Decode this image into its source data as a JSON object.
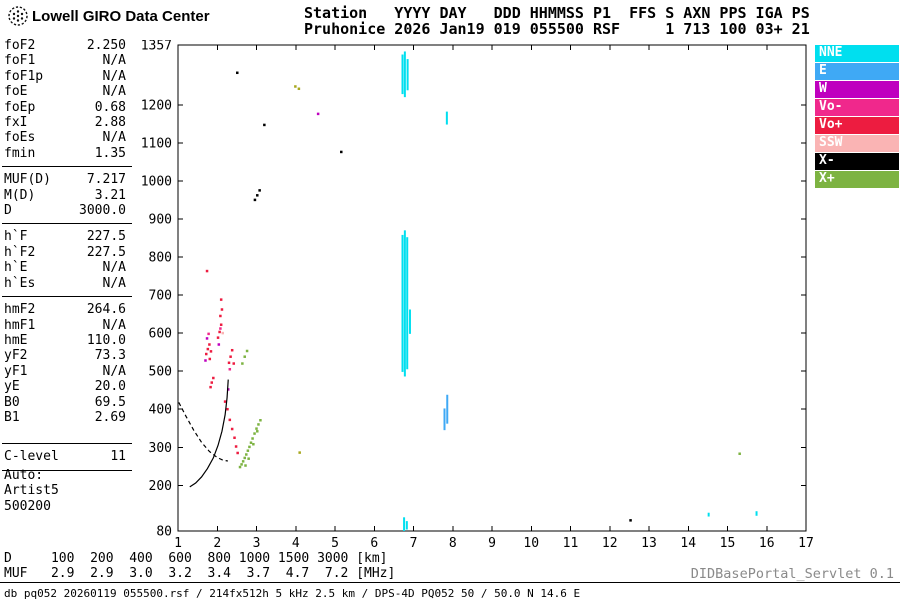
{
  "brand": {
    "title": "Lowell GIRO Data Center"
  },
  "station_header": {
    "line1": "Station   YYYY DAY   DDD HHMMSS P1  FFS S AXN PPS IGA PS",
    "line2": "Pruhonice 2026 Jan19 019 055500 RSF     1 713 100 03+ 21"
  },
  "params": {
    "groups": [
      {
        "rows": [
          [
            "foF2",
            "2.250"
          ],
          [
            "foF1",
            "N/A"
          ],
          [
            "foF1p",
            "N/A"
          ],
          [
            "foE",
            "N/A"
          ],
          [
            "foEp",
            "0.68"
          ],
          [
            "fxI",
            "2.88"
          ],
          [
            "foEs",
            "N/A"
          ],
          [
            "fmin",
            "1.35"
          ]
        ]
      },
      {
        "rows": [
          [
            "MUF(D)",
            "7.217"
          ],
          [
            "M(D)",
            "3.21"
          ],
          [
            "D",
            "3000.0"
          ]
        ]
      },
      {
        "rows": [
          [
            "h`F",
            "227.5"
          ],
          [
            "h`F2",
            "227.5"
          ],
          [
            "h`E",
            "N/A"
          ],
          [
            "h`Es",
            "N/A"
          ]
        ]
      },
      {
        "rows": [
          [
            "hmF2",
            "264.6"
          ],
          [
            "hmF1",
            "N/A"
          ],
          [
            "hmE",
            "110.0"
          ],
          [
            "yF2",
            "73.3"
          ],
          [
            "yF1",
            "N/A"
          ],
          [
            "yE",
            "20.0"
          ],
          [
            "B0",
            "69.5"
          ],
          [
            "B1",
            "2.69"
          ]
        ]
      },
      {
        "rows": [
          [
            "C-level",
            "11"
          ]
        ]
      }
    ],
    "auto": {
      "label": "Auto:",
      "line1": "Artist5",
      "line2": "500200"
    }
  },
  "legend": {
    "items": [
      {
        "label": "NNE",
        "color": "#00DFEF"
      },
      {
        "label": "E",
        "color": "#3FA9F5"
      },
      {
        "label": "W",
        "color": "#BF00BF"
      },
      {
        "label": "Vo-",
        "color": "#F0288C"
      },
      {
        "label": "Vo+",
        "color": "#ED1C40"
      },
      {
        "label": "SSW",
        "color": "#FAB4B4"
      },
      {
        "label": "X-",
        "color": "#000000"
      },
      {
        "label": "X+",
        "color": "#7DB342"
      }
    ]
  },
  "chart_data": {
    "type": "scatter",
    "xlabel": "[MHz]",
    "ylabel": "[km]",
    "xlim": [
      1,
      17
    ],
    "ylim": [
      80,
      1357
    ],
    "x_ticks": [
      1,
      2,
      3,
      4,
      5,
      6,
      7,
      8,
      9,
      10,
      11,
      12,
      13,
      14,
      15,
      16,
      17
    ],
    "y_ticks": [
      80,
      200,
      300,
      400,
      500,
      600,
      700,
      800,
      900,
      1000,
      1100,
      1200,
      1357
    ],
    "grid": false,
    "legend_position": "right",
    "series": [
      {
        "name": "NNE",
        "color": "#00DFEF",
        "points": [],
        "segments": [
          [
            6.72,
            1228,
            1332
          ],
          [
            6.78,
            1220,
            1340
          ],
          [
            6.85,
            1238,
            1320
          ],
          [
            6.72,
            498,
            858
          ],
          [
            6.78,
            486,
            870
          ],
          [
            6.84,
            505,
            852
          ],
          [
            6.91,
            598,
            662
          ],
          [
            6.76,
            80,
            116
          ],
          [
            6.83,
            84,
            106
          ],
          [
            7.85,
            1148,
            1182
          ],
          [
            14.52,
            118,
            128
          ],
          [
            15.74,
            120,
            132
          ]
        ]
      },
      {
        "name": "E",
        "color": "#3FA9F5",
        "points": [],
        "segments": [
          [
            7.79,
            345,
            402
          ],
          [
            7.86,
            362,
            438
          ]
        ]
      },
      {
        "name": "W",
        "color": "#BF00BF",
        "points": [
          [
            1.7,
            528
          ],
          [
            1.74,
            586
          ],
          [
            2.04,
            570
          ],
          [
            2.28,
            452
          ],
          [
            4.57,
            1176
          ]
        ]
      },
      {
        "name": "Vo-",
        "color": "#F0288C",
        "points": [
          [
            1.78,
            598
          ],
          [
            2.08,
            612
          ],
          [
            2.32,
            505
          ]
        ]
      },
      {
        "name": "Vo+",
        "color": "#ED1C40",
        "points": [
          [
            1.74,
            763
          ],
          [
            1.72,
            545
          ],
          [
            1.76,
            558
          ],
          [
            1.8,
            570
          ],
          [
            1.84,
            552
          ],
          [
            1.81,
            532
          ],
          [
            2.02,
            588
          ],
          [
            2.06,
            603
          ],
          [
            2.1,
            622
          ],
          [
            2.08,
            645
          ],
          [
            2.12,
            662
          ],
          [
            2.1,
            688
          ],
          [
            2.3,
            522
          ],
          [
            2.34,
            538
          ],
          [
            2.38,
            555
          ],
          [
            2.42,
            520
          ],
          [
            1.83,
            458
          ],
          [
            1.86,
            470
          ],
          [
            1.9,
            482
          ],
          [
            2.2,
            420
          ],
          [
            2.26,
            400
          ],
          [
            2.32,
            372
          ],
          [
            2.38,
            348
          ],
          [
            2.44,
            325
          ],
          [
            2.48,
            302
          ],
          [
            2.52,
            285
          ]
        ]
      },
      {
        "name": "SSW",
        "color": "#FAB4B4",
        "points": [
          [
            2.14,
            600
          ]
        ]
      },
      {
        "name": "X-",
        "color": "#000000",
        "points": [
          [
            2.51,
            1284
          ],
          [
            3.2,
            1147
          ],
          [
            5.16,
            1076
          ],
          [
            2.96,
            950
          ],
          [
            3.02,
            962
          ],
          [
            3.08,
            975
          ],
          [
            12.53,
            108
          ]
        ]
      },
      {
        "name": "X+",
        "color": "#7DB342",
        "points": [
          [
            2.58,
            248
          ],
          [
            2.62,
            255
          ],
          [
            2.66,
            263
          ],
          [
            2.7,
            272
          ],
          [
            2.74,
            281
          ],
          [
            2.78,
            291
          ],
          [
            2.82,
            301
          ],
          [
            2.86,
            312
          ],
          [
            2.9,
            323
          ],
          [
            2.95,
            336
          ],
          [
            3.0,
            349
          ],
          [
            3.05,
            360
          ],
          [
            3.1,
            371
          ],
          [
            2.72,
            252
          ],
          [
            2.8,
            270
          ],
          [
            2.92,
            308
          ],
          [
            3.02,
            342
          ],
          [
            2.64,
            520
          ],
          [
            2.7,
            538
          ],
          [
            2.76,
            553
          ],
          [
            15.31,
            283
          ]
        ]
      },
      {
        "name": "other",
        "color": "#A8A81E",
        "points": [
          [
            3.99,
            1248
          ],
          [
            4.08,
            1242
          ],
          [
            4.1,
            286
          ]
        ]
      }
    ],
    "curves": [
      {
        "name": "profile-dashed",
        "style": "dashed",
        "points": [
          [
            1.02,
            418
          ],
          [
            1.2,
            382
          ],
          [
            1.4,
            345
          ],
          [
            1.6,
            313
          ],
          [
            1.8,
            289
          ],
          [
            2.0,
            273
          ],
          [
            2.15,
            266
          ],
          [
            2.27,
            264
          ]
        ]
      },
      {
        "name": "trace-fit",
        "style": "solid",
        "points": [
          [
            1.3,
            196
          ],
          [
            1.45,
            206
          ],
          [
            1.6,
            222
          ],
          [
            1.75,
            244
          ],
          [
            1.9,
            272
          ],
          [
            2.02,
            305
          ],
          [
            2.12,
            342
          ],
          [
            2.2,
            385
          ],
          [
            2.25,
            430
          ],
          [
            2.28,
            478
          ]
        ]
      }
    ]
  },
  "dmuf_table": {
    "rows": [
      {
        "label": "D",
        "values": [
          "100",
          "200",
          "400",
          "600",
          "800",
          "1000",
          "1500",
          "3000"
        ],
        "unit": "[km]"
      },
      {
        "label": "MUF",
        "values": [
          "2.9",
          "2.9",
          "3.0",
          "3.2",
          "3.4",
          "3.7",
          "4.7",
          "7.2"
        ],
        "unit": "[MHz]"
      }
    ]
  },
  "footer": {
    "info": "db pq052 20260119 055500.rsf / 214fx512h 5 kHz 2.5 km / DPS-4D PQ052 50 / 50.0 N 14.6 E",
    "servlet": "DIDBasePortal_Servlet 0.1"
  }
}
